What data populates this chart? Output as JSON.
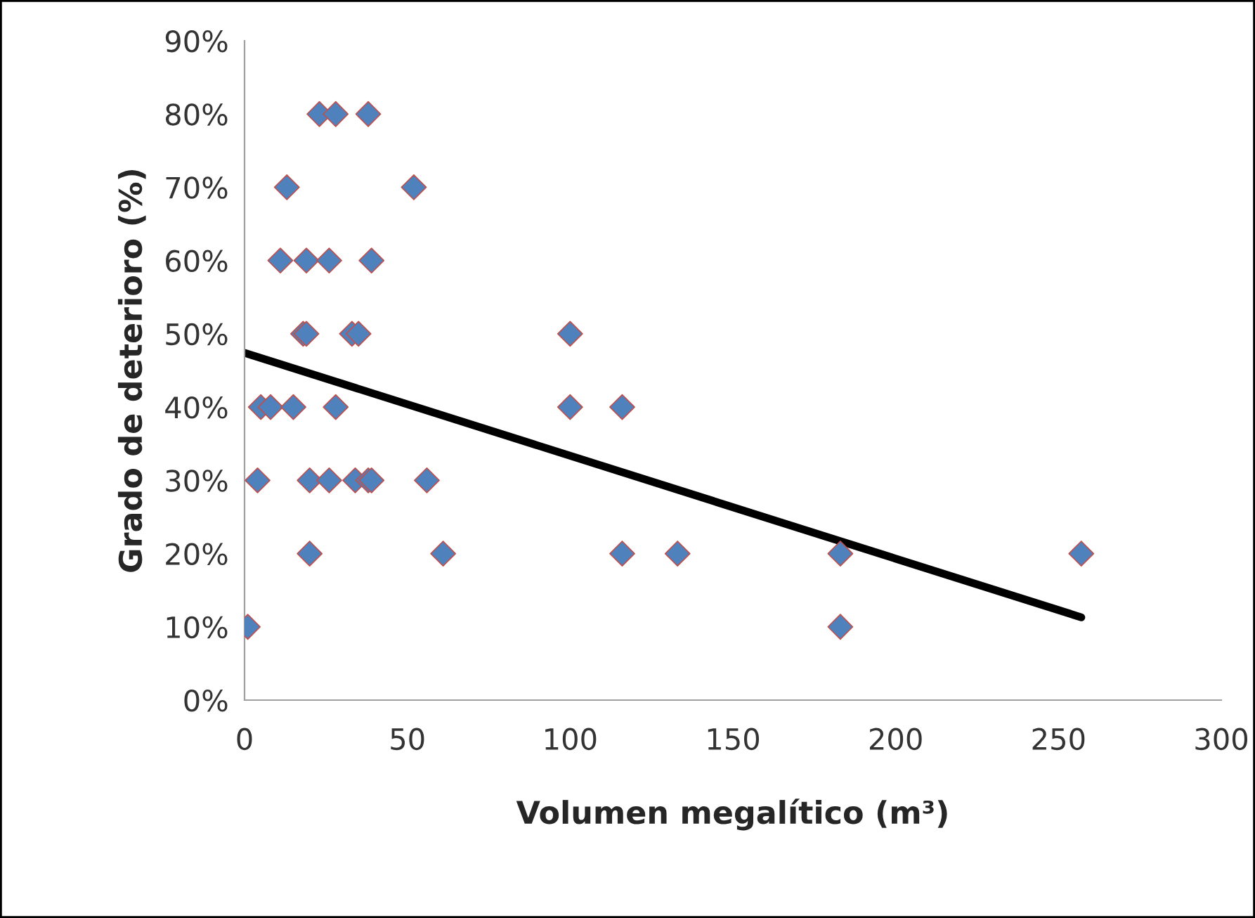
{
  "chart_data": {
    "type": "scatter",
    "xlabel": "Volumen megalítico (m³)",
    "ylabel": "Grado de deterioro (%)",
    "xlim": [
      0,
      300
    ],
    "xticks": [
      0,
      50,
      100,
      150,
      200,
      250,
      300
    ],
    "ylim": [
      0,
      90
    ],
    "yticks": [
      {
        "value": 0,
        "label": "0%"
      },
      {
        "value": 10,
        "label": "10%"
      },
      {
        "value": 20,
        "label": "20%"
      },
      {
        "value": 30,
        "label": "30%"
      },
      {
        "value": 40,
        "label": "40%"
      },
      {
        "value": 50,
        "label": "50%"
      },
      {
        "value": 60,
        "label": "60%"
      },
      {
        "value": 70,
        "label": "70%"
      },
      {
        "value": 80,
        "label": "80%"
      },
      {
        "value": 90,
        "label": "90%"
      }
    ],
    "grid": false,
    "legend": false,
    "marker": "diamond",
    "series": [
      {
        "color": "#4f81bd",
        "x": [
          23,
          28,
          38,
          13,
          52,
          11,
          19,
          26,
          39,
          18,
          19,
          33,
          35,
          100,
          5,
          8,
          15,
          28,
          100,
          116,
          4,
          20,
          26,
          34,
          38,
          39,
          56,
          20,
          61,
          116,
          133,
          183,
          257,
          1,
          183
        ],
        "values": [
          80,
          80,
          80,
          70,
          70,
          60,
          60,
          60,
          60,
          50,
          50,
          50,
          50,
          50,
          40,
          40,
          40,
          40,
          40,
          40,
          30,
          30,
          30,
          30,
          30,
          30,
          30,
          20,
          20,
          20,
          20,
          20,
          20,
          10,
          10
        ]
      },
      {
        "type": "line",
        "color": "#000000",
        "line_style": "solid",
        "marker": "none",
        "x": [
          0,
          257
        ],
        "values": [
          47.4,
          11.3
        ]
      }
    ]
  }
}
